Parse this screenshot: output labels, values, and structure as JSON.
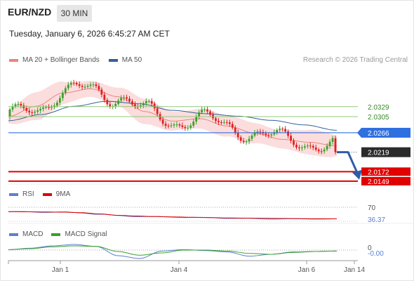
{
  "header": {
    "pair": "EUR/NZD",
    "timeframe": "30 MIN",
    "timestamp": "Tuesday, January 6, 2026 6:45:27 AM CET"
  },
  "credit": "Research © 2026 Trading Central",
  "legends": {
    "main": [
      {
        "label": "MA 20 + Bollinger Bands",
        "color": "#f08080"
      },
      {
        "label": "MA 50",
        "color": "#34609c"
      }
    ],
    "rsi": [
      {
        "label": "RSI",
        "color": "#5b7fd4"
      },
      {
        "label": "9MA",
        "color": "#e00000"
      }
    ],
    "macd": [
      {
        "label": "MACD",
        "color": "#5b7fd4"
      },
      {
        "label": "MACD Signal",
        "color": "#3aa02a"
      }
    ]
  },
  "chart_data": [
    {
      "type": "candlestick",
      "x_tick_labels": [
        "Jan 1",
        "Jan 4",
        "Jan 6",
        "Jan 14"
      ],
      "ylim": [
        2.0137,
        2.0405
      ],
      "last_price": 2.0219,
      "series": [
        {
          "name": "MA 20 + Bollinger Bands",
          "values": [
            2.0305,
            2.033,
            2.0362,
            2.0372,
            2.0353,
            2.0317,
            2.0294,
            2.03,
            2.0282,
            2.0265,
            2.025,
            2.0243,
            2.0234
          ]
        },
        {
          "name": "MA 50",
          "values": [
            2.0295,
            2.031,
            2.033,
            2.0342,
            2.0336,
            2.032,
            2.0312,
            2.0306,
            2.0296,
            2.0285,
            2.0272
          ]
        }
      ],
      "levels": [
        {
          "value": 2.0329,
          "label": "2.0329",
          "kind": "resistance"
        },
        {
          "value": 2.0305,
          "label": "2.0305",
          "kind": "resistance"
        },
        {
          "value": 2.0266,
          "label": "2.0266",
          "kind": "pivot"
        },
        {
          "value": 2.0219,
          "label": "2.0219",
          "kind": "last"
        },
        {
          "value": 2.0172,
          "label": "2.0172",
          "kind": "support"
        },
        {
          "value": 2.0149,
          "label": "2.0149",
          "kind": "support"
        }
      ],
      "forecast": {
        "direction": "down",
        "from": 2.0219,
        "to": 2.0156
      },
      "colors": {
        "up": "#3aa02a",
        "down": "#e02020",
        "pivot": "#2f6fe0",
        "support": "#e00000",
        "resistance": "#8fc97a",
        "bands": "#f8c6c6",
        "last": "#2b2b2b",
        "arrow": "#2e5ca8"
      }
    },
    {
      "type": "line",
      "name": "RSI",
      "ylim": [
        20,
        80
      ],
      "levels": [
        {
          "value": 70,
          "label": "70"
        }
      ],
      "current": {
        "value": 36.37,
        "label": "36.37"
      },
      "series": [
        {
          "name": "RSI",
          "values": [
            57,
            57,
            56,
            56,
            54,
            50,
            46,
            44,
            43,
            42,
            41,
            40,
            39,
            38,
            37,
            37,
            36.5,
            37,
            36.37
          ]
        },
        {
          "name": "9MA",
          "values": [
            57.5,
            57,
            56.5,
            56,
            54.5,
            51,
            47,
            45,
            43.5,
            42.5,
            41.5,
            40.5,
            39.5,
            39,
            38.5,
            38,
            37.5,
            37.2,
            37
          ]
        }
      ]
    },
    {
      "type": "line",
      "name": "MACD",
      "ylim": [
        -0.003,
        0.003
      ],
      "levels": [
        {
          "value": 0,
          "label": "0"
        }
      ],
      "current": {
        "value": -0.0,
        "label": "-0.00"
      },
      "series": [
        {
          "name": "MACD",
          "values": [
            0.0001,
            0.0004,
            0.0009,
            0.0012,
            0.0008,
            -0.0012,
            -0.0018,
            -0.0002,
            0.0001,
            -0.0001,
            -0.0004,
            -0.0013,
            -0.0009,
            -0.0004,
            -0.0003,
            -0.0002
          ]
        },
        {
          "name": "MACD Signal",
          "values": [
            0.0001,
            0.0003,
            0.0007,
            0.0009,
            0.0008,
            -0.0003,
            -0.0011,
            -0.0006,
            0.0,
            0.0,
            -0.0002,
            -0.0007,
            -0.0009,
            -0.0005,
            -0.0003,
            -0.0002
          ]
        }
      ]
    }
  ]
}
